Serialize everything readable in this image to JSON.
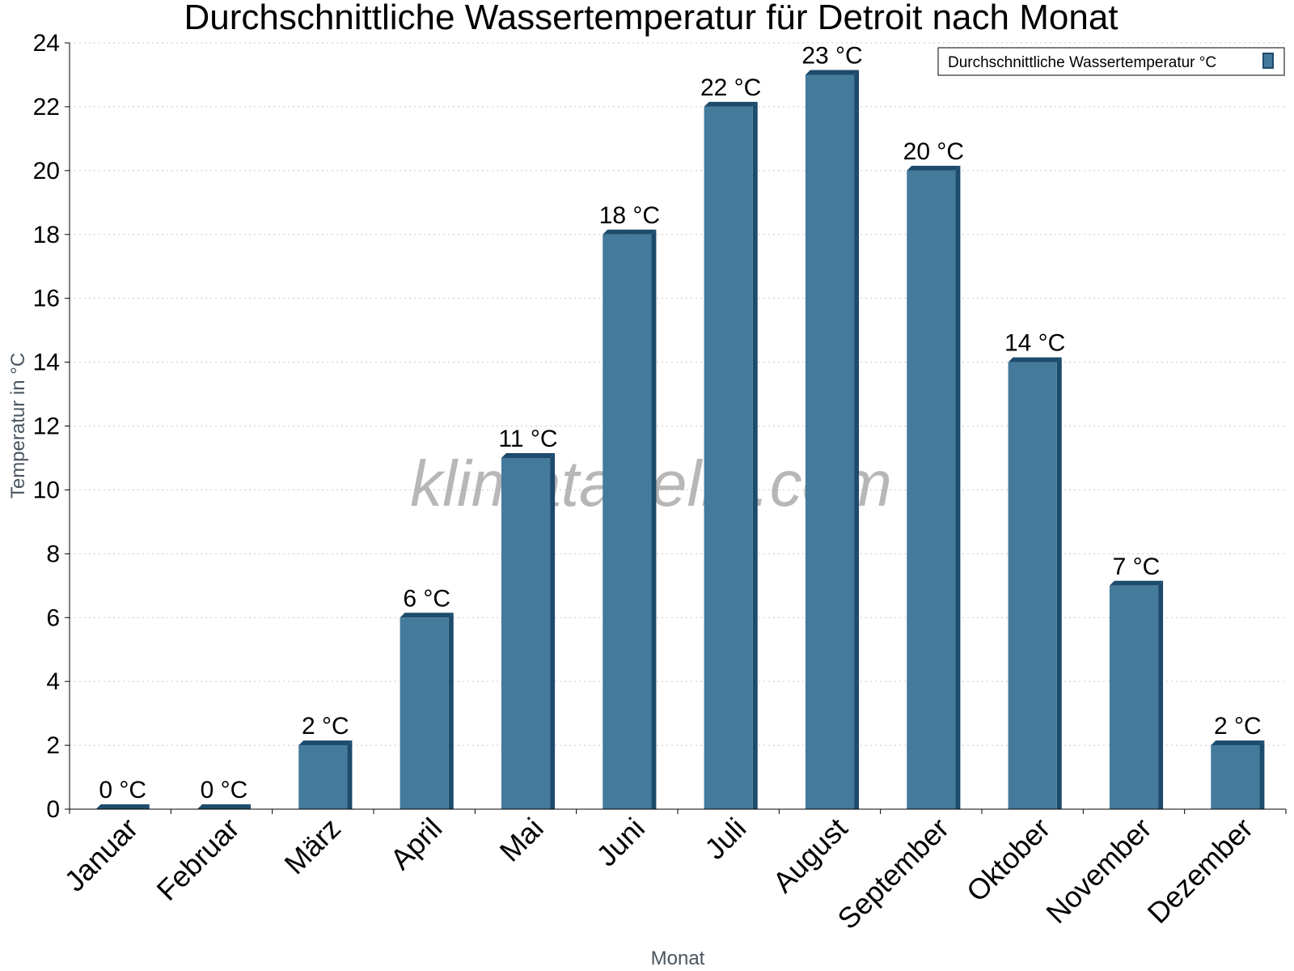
{
  "chart_data": {
    "type": "bar",
    "title": "Durchschnittliche Wassertemperatur für Detroit nach Monat",
    "xlabel": "Monat",
    "ylabel": "Temperatur in °C",
    "categories": [
      "Januar",
      "Februar",
      "März",
      "April",
      "Mai",
      "Juni",
      "Juli",
      "August",
      "September",
      "Oktober",
      "November",
      "Dezember"
    ],
    "series": [
      {
        "name": "Durchschnittliche Wassertemperatur °C",
        "values": [
          0,
          0,
          2,
          6,
          11,
          18,
          22,
          23,
          20,
          14,
          7,
          2
        ],
        "labels": [
          "0 °C",
          "0 °C",
          "2 °C",
          "6 °C",
          "11 °C",
          "18 °C",
          "22 °C",
          "23 °C",
          "20 °C",
          "14 °C",
          "7 °C",
          "2 °C"
        ],
        "color": "#447a9c",
        "edge_color": "#1d4b6b"
      }
    ],
    "yticks": [
      "0",
      "2",
      "4",
      "6",
      "8",
      "10",
      "12",
      "14",
      "16",
      "18",
      "20",
      "22",
      "24"
    ],
    "ylim": [
      0,
      24
    ],
    "grid": true,
    "legend": "top-right"
  },
  "watermark": "klimatabelle.com"
}
